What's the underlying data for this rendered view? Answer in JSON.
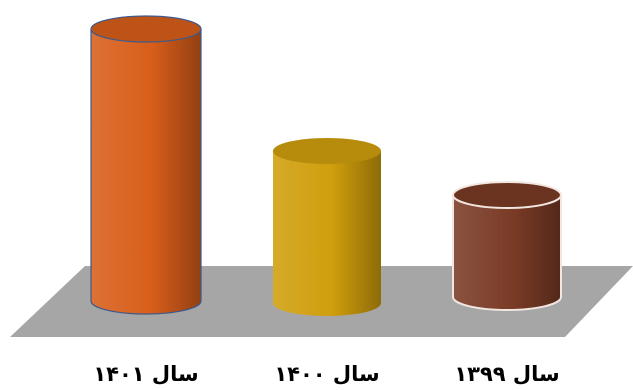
{
  "chart_data": {
    "type": "bar",
    "style": "3d-cylinder",
    "categories": [
      "سال ۱۴۰۱",
      "سال ۱۴۰۰",
      "سال ۱۳۹۹"
    ],
    "values": [
      272,
      152,
      102
    ],
    "colors": [
      "#D85E1A",
      "#D09E0C",
      "#7A3B26"
    ],
    "floor_color": "#A6A6A6",
    "title": "",
    "xlabel": "",
    "ylabel": "",
    "ylim": [
      0,
      290
    ],
    "grid": false,
    "legend": "none"
  }
}
